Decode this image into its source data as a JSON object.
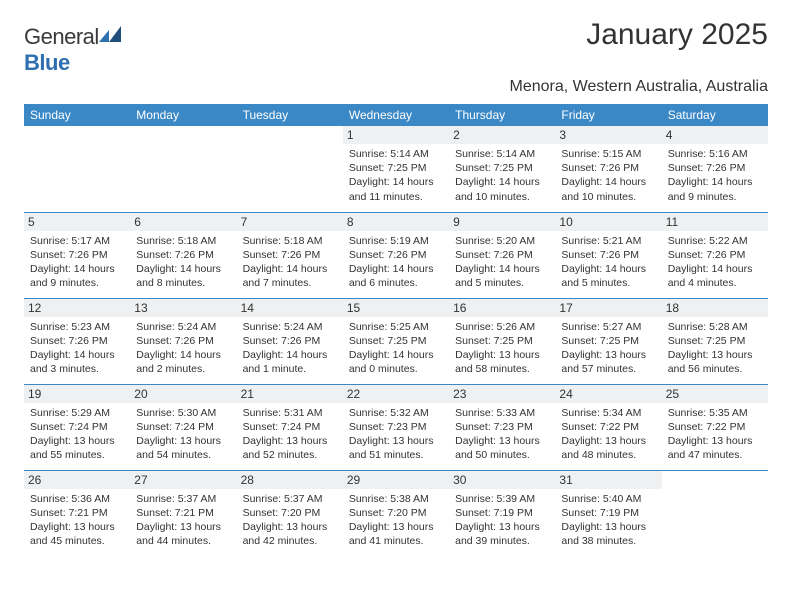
{
  "brand": {
    "name_part1": "General",
    "name_part2": "Blue",
    "color_primary": "#3b88c7",
    "color_dark": "#1f4e7a"
  },
  "header": {
    "title": "January 2025",
    "location": "Menora, Western Australia, Australia"
  },
  "calendar": {
    "day_headers": [
      "Sunday",
      "Monday",
      "Tuesday",
      "Wednesday",
      "Thursday",
      "Friday",
      "Saturday"
    ],
    "header_bg": "#3b88c7",
    "header_fg": "#ffffff",
    "daynum_bg": "#eef0f2",
    "border_color": "#3b88c7",
    "text_color": "#333333",
    "weeks": [
      [
        null,
        null,
        null,
        {
          "n": "1",
          "sunrise": "5:14 AM",
          "sunset": "7:25 PM",
          "daylight": "14 hours and 11 minutes."
        },
        {
          "n": "2",
          "sunrise": "5:14 AM",
          "sunset": "7:25 PM",
          "daylight": "14 hours and 10 minutes."
        },
        {
          "n": "3",
          "sunrise": "5:15 AM",
          "sunset": "7:26 PM",
          "daylight": "14 hours and 10 minutes."
        },
        {
          "n": "4",
          "sunrise": "5:16 AM",
          "sunset": "7:26 PM",
          "daylight": "14 hours and 9 minutes."
        }
      ],
      [
        {
          "n": "5",
          "sunrise": "5:17 AM",
          "sunset": "7:26 PM",
          "daylight": "14 hours and 9 minutes."
        },
        {
          "n": "6",
          "sunrise": "5:18 AM",
          "sunset": "7:26 PM",
          "daylight": "14 hours and 8 minutes."
        },
        {
          "n": "7",
          "sunrise": "5:18 AM",
          "sunset": "7:26 PM",
          "daylight": "14 hours and 7 minutes."
        },
        {
          "n": "8",
          "sunrise": "5:19 AM",
          "sunset": "7:26 PM",
          "daylight": "14 hours and 6 minutes."
        },
        {
          "n": "9",
          "sunrise": "5:20 AM",
          "sunset": "7:26 PM",
          "daylight": "14 hours and 5 minutes."
        },
        {
          "n": "10",
          "sunrise": "5:21 AM",
          "sunset": "7:26 PM",
          "daylight": "14 hours and 5 minutes."
        },
        {
          "n": "11",
          "sunrise": "5:22 AM",
          "sunset": "7:26 PM",
          "daylight": "14 hours and 4 minutes."
        }
      ],
      [
        {
          "n": "12",
          "sunrise": "5:23 AM",
          "sunset": "7:26 PM",
          "daylight": "14 hours and 3 minutes."
        },
        {
          "n": "13",
          "sunrise": "5:24 AM",
          "sunset": "7:26 PM",
          "daylight": "14 hours and 2 minutes."
        },
        {
          "n": "14",
          "sunrise": "5:24 AM",
          "sunset": "7:26 PM",
          "daylight": "14 hours and 1 minute."
        },
        {
          "n": "15",
          "sunrise": "5:25 AM",
          "sunset": "7:25 PM",
          "daylight": "14 hours and 0 minutes."
        },
        {
          "n": "16",
          "sunrise": "5:26 AM",
          "sunset": "7:25 PM",
          "daylight": "13 hours and 58 minutes."
        },
        {
          "n": "17",
          "sunrise": "5:27 AM",
          "sunset": "7:25 PM",
          "daylight": "13 hours and 57 minutes."
        },
        {
          "n": "18",
          "sunrise": "5:28 AM",
          "sunset": "7:25 PM",
          "daylight": "13 hours and 56 minutes."
        }
      ],
      [
        {
          "n": "19",
          "sunrise": "5:29 AM",
          "sunset": "7:24 PM",
          "daylight": "13 hours and 55 minutes."
        },
        {
          "n": "20",
          "sunrise": "5:30 AM",
          "sunset": "7:24 PM",
          "daylight": "13 hours and 54 minutes."
        },
        {
          "n": "21",
          "sunrise": "5:31 AM",
          "sunset": "7:24 PM",
          "daylight": "13 hours and 52 minutes."
        },
        {
          "n": "22",
          "sunrise": "5:32 AM",
          "sunset": "7:23 PM",
          "daylight": "13 hours and 51 minutes."
        },
        {
          "n": "23",
          "sunrise": "5:33 AM",
          "sunset": "7:23 PM",
          "daylight": "13 hours and 50 minutes."
        },
        {
          "n": "24",
          "sunrise": "5:34 AM",
          "sunset": "7:22 PM",
          "daylight": "13 hours and 48 minutes."
        },
        {
          "n": "25",
          "sunrise": "5:35 AM",
          "sunset": "7:22 PM",
          "daylight": "13 hours and 47 minutes."
        }
      ],
      [
        {
          "n": "26",
          "sunrise": "5:36 AM",
          "sunset": "7:21 PM",
          "daylight": "13 hours and 45 minutes."
        },
        {
          "n": "27",
          "sunrise": "5:37 AM",
          "sunset": "7:21 PM",
          "daylight": "13 hours and 44 minutes."
        },
        {
          "n": "28",
          "sunrise": "5:37 AM",
          "sunset": "7:20 PM",
          "daylight": "13 hours and 42 minutes."
        },
        {
          "n": "29",
          "sunrise": "5:38 AM",
          "sunset": "7:20 PM",
          "daylight": "13 hours and 41 minutes."
        },
        {
          "n": "30",
          "sunrise": "5:39 AM",
          "sunset": "7:19 PM",
          "daylight": "13 hours and 39 minutes."
        },
        {
          "n": "31",
          "sunrise": "5:40 AM",
          "sunset": "7:19 PM",
          "daylight": "13 hours and 38 minutes."
        },
        null
      ]
    ]
  }
}
